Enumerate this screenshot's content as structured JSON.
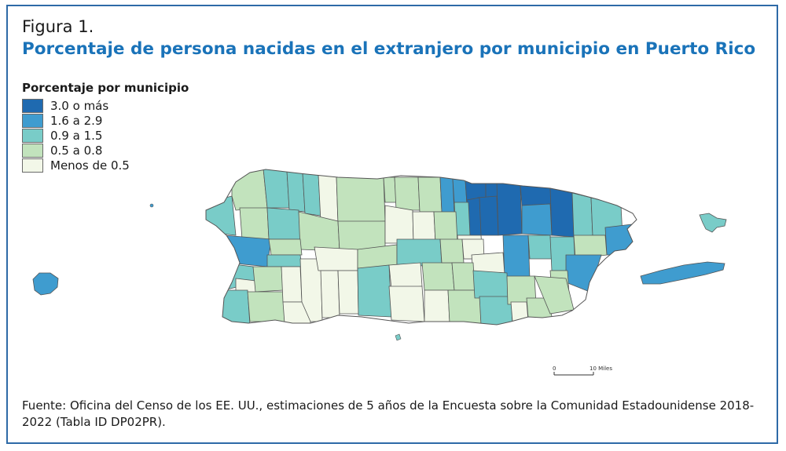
{
  "figure": {
    "label": "Figura 1.",
    "title": "Porcentaje de persona nacidas en el extranjero por municipio en Puerto Rico"
  },
  "legend": {
    "title": "Porcentaje por municipio",
    "items": [
      {
        "label": "3.0 o más",
        "color": "#1f6ab0"
      },
      {
        "label": "1.6 a 2.9",
        "color": "#3f9ccf"
      },
      {
        "label": "0.9 a 1.5",
        "color": "#79ccc8"
      },
      {
        "label": "0.5 a 0.8",
        "color": "#c2e3bd"
      },
      {
        "label": "Menos de 0.5",
        "color": "#f2f7e8"
      }
    ]
  },
  "scale_bar": {
    "start": "0",
    "end": "10 Miles"
  },
  "source": "Fuente: Oficina del Censo de los EE. UU., estimaciones de 5 años de la Encuesta sobre la Comunidad Estadounidense 2018-2022 (Tabla ID DP02PR).",
  "colors": {
    "border": "#2e6aa7",
    "title": "#1a73b9",
    "outline": "#555555"
  }
}
